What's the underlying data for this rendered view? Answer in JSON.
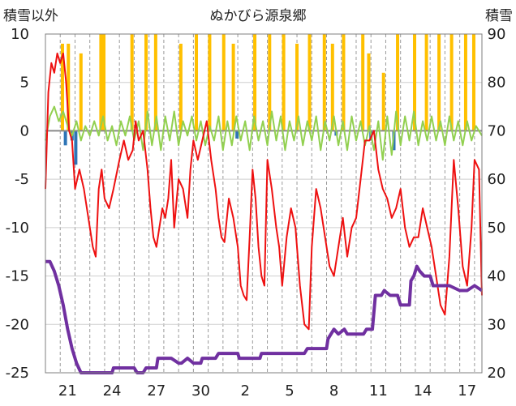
{
  "chart_data": {
    "type": "line",
    "title": "ぬかびら源泉郷",
    "ylabel_left": "積雪以外",
    "ylabel_right": "積雪",
    "xlabel": "",
    "x_tick_labels": [
      "21",
      "24",
      "27",
      "30",
      "2",
      "5",
      "8",
      "11",
      "14",
      "17"
    ],
    "day_range": [
      0,
      29.5
    ],
    "x_tick_days": [
      1.5,
      4.5,
      7.5,
      10.5,
      13.5,
      16.5,
      19.5,
      22.5,
      25.5,
      28.5
    ],
    "y_left": {
      "min": -25,
      "max": 10,
      "ticks": [
        10,
        5,
        0,
        -5,
        -10,
        -15,
        -20,
        -25
      ]
    },
    "y_right": {
      "min": 20,
      "max": 90,
      "ticks": [
        90,
        80,
        70,
        60,
        50,
        40,
        30,
        20
      ]
    },
    "grid": true,
    "series": [
      {
        "key": "temperature",
        "axis": "left",
        "color": "#ee1111",
        "points": [
          [
            0,
            -6
          ],
          [
            0.2,
            4
          ],
          [
            0.4,
            7
          ],
          [
            0.6,
            6
          ],
          [
            0.8,
            8
          ],
          [
            1.0,
            7
          ],
          [
            1.2,
            8
          ],
          [
            1.4,
            5
          ],
          [
            1.6,
            0
          ],
          [
            1.8,
            -1
          ],
          [
            2.0,
            -6
          ],
          [
            2.3,
            -4
          ],
          [
            2.6,
            -6
          ],
          [
            2.9,
            -9
          ],
          [
            3.2,
            -12
          ],
          [
            3.4,
            -13
          ],
          [
            3.6,
            -6
          ],
          [
            3.8,
            -4
          ],
          [
            4.0,
            -7
          ],
          [
            4.3,
            -8
          ],
          [
            4.6,
            -6
          ],
          [
            5.0,
            -3
          ],
          [
            5.3,
            -1
          ],
          [
            5.6,
            -3
          ],
          [
            5.9,
            -2
          ],
          [
            6.1,
            1
          ],
          [
            6.3,
            -1
          ],
          [
            6.6,
            0
          ],
          [
            6.9,
            -4
          ],
          [
            7.1,
            -8
          ],
          [
            7.3,
            -11
          ],
          [
            7.5,
            -12
          ],
          [
            7.7,
            -10
          ],
          [
            7.9,
            -8
          ],
          [
            8.1,
            -9
          ],
          [
            8.3,
            -7
          ],
          [
            8.5,
            -3
          ],
          [
            8.7,
            -10
          ],
          [
            9.0,
            -5
          ],
          [
            9.3,
            -6
          ],
          [
            9.6,
            -9
          ],
          [
            9.8,
            -4
          ],
          [
            10.0,
            -1
          ],
          [
            10.3,
            -3
          ],
          [
            10.6,
            -1
          ],
          [
            10.9,
            1
          ],
          [
            11.2,
            -3
          ],
          [
            11.5,
            -6
          ],
          [
            11.7,
            -9
          ],
          [
            11.9,
            -11
          ],
          [
            12.1,
            -11.5
          ],
          [
            12.4,
            -7
          ],
          [
            12.7,
            -9
          ],
          [
            13.0,
            -12
          ],
          [
            13.2,
            -16
          ],
          [
            13.4,
            -17
          ],
          [
            13.6,
            -17.5
          ],
          [
            13.8,
            -11
          ],
          [
            14.0,
            -4
          ],
          [
            14.2,
            -7
          ],
          [
            14.4,
            -12
          ],
          [
            14.6,
            -15
          ],
          [
            14.8,
            -16
          ],
          [
            15.0,
            -3
          ],
          [
            15.3,
            -6
          ],
          [
            15.6,
            -10
          ],
          [
            15.8,
            -12
          ],
          [
            16.0,
            -16
          ],
          [
            16.3,
            -11
          ],
          [
            16.6,
            -8
          ],
          [
            16.9,
            -10
          ],
          [
            17.2,
            -16
          ],
          [
            17.5,
            -20
          ],
          [
            17.8,
            -20.5
          ],
          [
            18.0,
            -12
          ],
          [
            18.3,
            -6
          ],
          [
            18.6,
            -8
          ],
          [
            18.9,
            -11
          ],
          [
            19.2,
            -14
          ],
          [
            19.5,
            -15
          ],
          [
            19.8,
            -12
          ],
          [
            20.1,
            -9
          ],
          [
            20.4,
            -13
          ],
          [
            20.7,
            -10
          ],
          [
            21.0,
            -9
          ],
          [
            21.3,
            -5
          ],
          [
            21.6,
            -1
          ],
          [
            21.9,
            -1
          ],
          [
            22.2,
            0
          ],
          [
            22.5,
            -4
          ],
          [
            22.8,
            -6
          ],
          [
            23.1,
            -7
          ],
          [
            23.4,
            -9
          ],
          [
            23.7,
            -8
          ],
          [
            24.0,
            -6
          ],
          [
            24.3,
            -10
          ],
          [
            24.6,
            -12
          ],
          [
            24.9,
            -11
          ],
          [
            25.2,
            -11
          ],
          [
            25.5,
            -8
          ],
          [
            25.8,
            -10
          ],
          [
            26.1,
            -12
          ],
          [
            26.4,
            -15
          ],
          [
            26.7,
            -18
          ],
          [
            27.0,
            -19
          ],
          [
            27.3,
            -13
          ],
          [
            27.6,
            -3
          ],
          [
            27.9,
            -8
          ],
          [
            28.2,
            -14
          ],
          [
            28.5,
            -16
          ],
          [
            28.8,
            -10
          ],
          [
            29.0,
            -3
          ],
          [
            29.3,
            -4
          ],
          [
            29.5,
            -17
          ]
        ]
      },
      {
        "key": "wind",
        "axis": "left",
        "color": "#92d050",
        "points": [
          [
            0,
            -1
          ],
          [
            0.3,
            1.5
          ],
          [
            0.6,
            2.5
          ],
          [
            0.9,
            1
          ],
          [
            1.2,
            2
          ],
          [
            1.5,
            0.5
          ],
          [
            1.8,
            -0.5
          ],
          [
            2.1,
            1
          ],
          [
            2.4,
            -1
          ],
          [
            2.7,
            0.5
          ],
          [
            3.0,
            -0.5
          ],
          [
            3.3,
            1
          ],
          [
            3.6,
            -0.5
          ],
          [
            3.9,
            1.5
          ],
          [
            4.2,
            -1
          ],
          [
            4.5,
            0.5
          ],
          [
            4.8,
            -1.5
          ],
          [
            5.1,
            1
          ],
          [
            5.4,
            -0.5
          ],
          [
            5.7,
            1.5
          ],
          [
            6.0,
            -1
          ],
          [
            6.3,
            1
          ],
          [
            6.6,
            -2
          ],
          [
            6.9,
            2
          ],
          [
            7.2,
            -1.5
          ],
          [
            7.5,
            1.5
          ],
          [
            7.8,
            -2
          ],
          [
            8.1,
            1.5
          ],
          [
            8.4,
            -1
          ],
          [
            8.7,
            2
          ],
          [
            9.0,
            -1.5
          ],
          [
            9.3,
            1
          ],
          [
            9.6,
            -0.5
          ],
          [
            9.9,
            1.5
          ],
          [
            10.2,
            -1
          ],
          [
            10.5,
            1
          ],
          [
            10.8,
            -1.5
          ],
          [
            11.1,
            0.5
          ],
          [
            11.4,
            -1
          ],
          [
            11.7,
            1.5
          ],
          [
            12.0,
            -2
          ],
          [
            12.3,
            1
          ],
          [
            12.6,
            -1.5
          ],
          [
            12.9,
            1.5
          ],
          [
            13.2,
            -1
          ],
          [
            13.5,
            1
          ],
          [
            13.8,
            -2
          ],
          [
            14.1,
            1.5
          ],
          [
            14.4,
            -1
          ],
          [
            14.7,
            1
          ],
          [
            15.0,
            -1.5
          ],
          [
            15.3,
            2
          ],
          [
            15.6,
            -1
          ],
          [
            15.9,
            1.5
          ],
          [
            16.2,
            -2
          ],
          [
            16.5,
            1
          ],
          [
            16.8,
            -1
          ],
          [
            17.1,
            1.5
          ],
          [
            17.4,
            -1.5
          ],
          [
            17.7,
            1
          ],
          [
            18.0,
            -1
          ],
          [
            18.3,
            1.5
          ],
          [
            18.6,
            -2
          ],
          [
            18.9,
            1
          ],
          [
            19.2,
            -1
          ],
          [
            19.5,
            1.5
          ],
          [
            19.8,
            -1.5
          ],
          [
            20.1,
            1
          ],
          [
            20.4,
            -2
          ],
          [
            20.7,
            1.5
          ],
          [
            21.0,
            -1
          ],
          [
            21.3,
            1
          ],
          [
            21.6,
            -1.5
          ],
          [
            21.9,
            0.5
          ],
          [
            22.2,
            -2
          ],
          [
            22.5,
            1
          ],
          [
            22.8,
            -3
          ],
          [
            23.1,
            1.5
          ],
          [
            23.4,
            -2.5
          ],
          [
            23.7,
            2
          ],
          [
            24.0,
            -1.5
          ],
          [
            24.3,
            1.5
          ],
          [
            24.6,
            -1
          ],
          [
            24.9,
            2
          ],
          [
            25.2,
            -1.5
          ],
          [
            25.5,
            1
          ],
          [
            25.8,
            -1
          ],
          [
            26.1,
            1.5
          ],
          [
            26.4,
            -1
          ],
          [
            26.7,
            1
          ],
          [
            27.0,
            -1.5
          ],
          [
            27.3,
            1.5
          ],
          [
            27.6,
            -1
          ],
          [
            27.9,
            1
          ],
          [
            28.2,
            -1.5
          ],
          [
            28.5,
            1
          ],
          [
            28.8,
            -1
          ],
          [
            29.1,
            0.5
          ],
          [
            29.5,
            -0.5
          ]
        ]
      },
      {
        "key": "snow_depth",
        "axis": "right",
        "color": "#7030a0",
        "points": [
          [
            0,
            43
          ],
          [
            0.3,
            43
          ],
          [
            0.6,
            41
          ],
          [
            0.9,
            38
          ],
          [
            1.2,
            34
          ],
          [
            1.5,
            29
          ],
          [
            1.8,
            25
          ],
          [
            2.1,
            22
          ],
          [
            2.4,
            20
          ],
          [
            3.0,
            20
          ],
          [
            4.0,
            20
          ],
          [
            4.5,
            20
          ],
          [
            4.6,
            21
          ],
          [
            5.5,
            21
          ],
          [
            6.0,
            21
          ],
          [
            6.2,
            20
          ],
          [
            6.6,
            20
          ],
          [
            6.8,
            21
          ],
          [
            7.5,
            21
          ],
          [
            7.6,
            23
          ],
          [
            8.5,
            23
          ],
          [
            9.0,
            22
          ],
          [
            9.2,
            22
          ],
          [
            9.6,
            23
          ],
          [
            10.0,
            22
          ],
          [
            10.5,
            22
          ],
          [
            10.6,
            23
          ],
          [
            11.5,
            23
          ],
          [
            11.7,
            24
          ],
          [
            13.0,
            24
          ],
          [
            13.1,
            23
          ],
          [
            14.5,
            23
          ],
          [
            14.6,
            24
          ],
          [
            16.0,
            24
          ],
          [
            17.5,
            24
          ],
          [
            17.7,
            25
          ],
          [
            19.0,
            25
          ],
          [
            19.1,
            27
          ],
          [
            19.5,
            29
          ],
          [
            19.8,
            28
          ],
          [
            20.2,
            29
          ],
          [
            20.4,
            28
          ],
          [
            21.0,
            28
          ],
          [
            21.5,
            28
          ],
          [
            21.7,
            29
          ],
          [
            22.1,
            29
          ],
          [
            22.3,
            36
          ],
          [
            22.7,
            36
          ],
          [
            22.9,
            37
          ],
          [
            23.3,
            36
          ],
          [
            23.8,
            36
          ],
          [
            24.0,
            34
          ],
          [
            24.6,
            34
          ],
          [
            24.7,
            39
          ],
          [
            24.9,
            40
          ],
          [
            25.1,
            42
          ],
          [
            25.3,
            41
          ],
          [
            25.6,
            40
          ],
          [
            26.0,
            40
          ],
          [
            26.2,
            38
          ],
          [
            27.0,
            38
          ],
          [
            27.3,
            38
          ],
          [
            28.0,
            37
          ],
          [
            28.5,
            37
          ],
          [
            29.0,
            38
          ],
          [
            29.5,
            37
          ]
        ]
      },
      {
        "key": "snowfall",
        "axis": "left",
        "type": "bar",
        "color": "#ffc000",
        "points": [
          [
            1.15,
            9
          ],
          [
            1.55,
            9
          ],
          [
            2.4,
            8
          ],
          [
            3.75,
            10
          ],
          [
            3.95,
            10
          ],
          [
            5.85,
            10
          ],
          [
            6.8,
            10
          ],
          [
            7.45,
            10
          ],
          [
            9.15,
            9
          ],
          [
            10.2,
            10
          ],
          [
            11.1,
            10
          ],
          [
            12.05,
            10
          ],
          [
            12.7,
            9
          ],
          [
            14.15,
            10
          ],
          [
            15.15,
            10
          ],
          [
            16.1,
            10
          ],
          [
            17.0,
            9
          ],
          [
            17.85,
            10
          ],
          [
            18.85,
            10
          ],
          [
            19.4,
            9
          ],
          [
            20.15,
            10
          ],
          [
            21.45,
            10
          ],
          [
            21.85,
            8
          ],
          [
            22.85,
            6
          ],
          [
            23.8,
            10
          ],
          [
            24.95,
            10
          ],
          [
            25.75,
            10
          ],
          [
            26.6,
            10
          ],
          [
            27.45,
            10
          ],
          [
            28.4,
            10
          ],
          [
            28.95,
            10
          ]
        ]
      },
      {
        "key": "other_bars",
        "axis": "left",
        "type": "bar",
        "color": "#2e75b6",
        "points": [
          [
            1.35,
            -1.5
          ],
          [
            1.8,
            -1
          ],
          [
            2.05,
            -3.5
          ],
          [
            12.95,
            -0.8
          ],
          [
            19.65,
            -0.5
          ],
          [
            22.0,
            -1
          ],
          [
            23.55,
            -2
          ]
        ]
      }
    ]
  }
}
